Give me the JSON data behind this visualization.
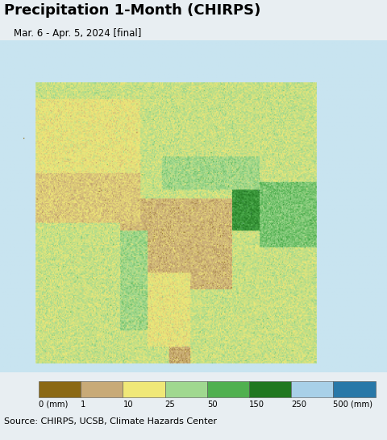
{
  "title": "Precipitation 1-Month (CHIRPS)",
  "subtitle": "Mar. 6 - Apr. 5, 2024 [final]",
  "source_text": "Source: CHIRPS, UCSB, Climate Hazards Center",
  "colorbar_labels": [
    "0 (mm)",
    "1",
    "10",
    "25",
    "50",
    "150",
    "250",
    "500 (mm)"
  ],
  "colorbar_colors": [
    "#8B6914",
    "#C8AA78",
    "#F0E878",
    "#A0D890",
    "#50B050",
    "#207820",
    "#A8D0E8",
    "#2878A8"
  ],
  "fig_bg_color": "#E8EEF2",
  "map_ocean_color": "#C8E4F0",
  "map_land_bg_color": "#E0D8D0",
  "title_fontsize": 13,
  "subtitle_fontsize": 8.5,
  "source_fontsize": 8,
  "fig_width": 4.8,
  "fig_height": 5.46,
  "dpi": 100
}
